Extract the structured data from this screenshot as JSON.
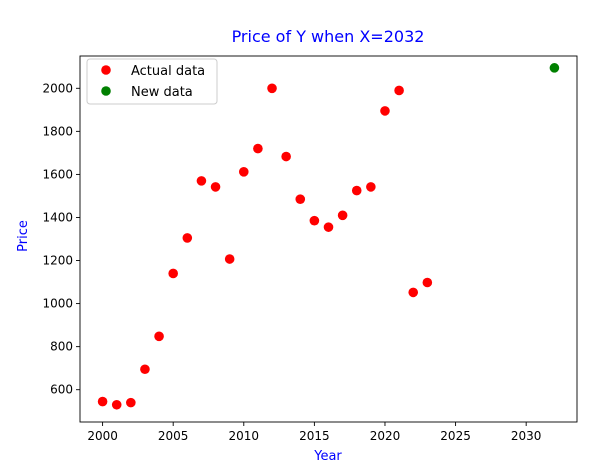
{
  "chart_data": {
    "type": "scatter",
    "title": "Price of Y when X=2032",
    "xlabel": "Year",
    "ylabel": "Price",
    "xlim": [
      1998.4,
      2033.6
    ],
    "ylim": [
      450,
      2150
    ],
    "xticks": [
      2000,
      2005,
      2010,
      2015,
      2020,
      2025,
      2030
    ],
    "yticks": [
      600,
      800,
      1000,
      1200,
      1400,
      1600,
      1800,
      2000
    ],
    "grid": false,
    "legend_position": "top-left",
    "colors": {
      "title": "#0000ff",
      "axis_labels": "#0000ff",
      "actual": "#ff0000",
      "new": "#008000"
    },
    "series": [
      {
        "name": "Actual data",
        "color": "#ff0000",
        "x": [
          2000,
          2001,
          2002,
          2003,
          2004,
          2005,
          2006,
          2007,
          2008,
          2009,
          2010,
          2011,
          2012,
          2013,
          2014,
          2015,
          2016,
          2017,
          2018,
          2019,
          2020,
          2021,
          2022,
          2023
        ],
        "y": [
          545,
          530,
          540,
          695,
          848,
          1140,
          1305,
          1570,
          1542,
          1207,
          1612,
          1720,
          2000,
          1683,
          1485,
          1385,
          1355,
          1410,
          1525,
          1542,
          1895,
          1990,
          1052,
          1098
        ]
      },
      {
        "name": "New data",
        "color": "#008000",
        "x": [
          2032
        ],
        "y": [
          2095
        ]
      }
    ]
  }
}
